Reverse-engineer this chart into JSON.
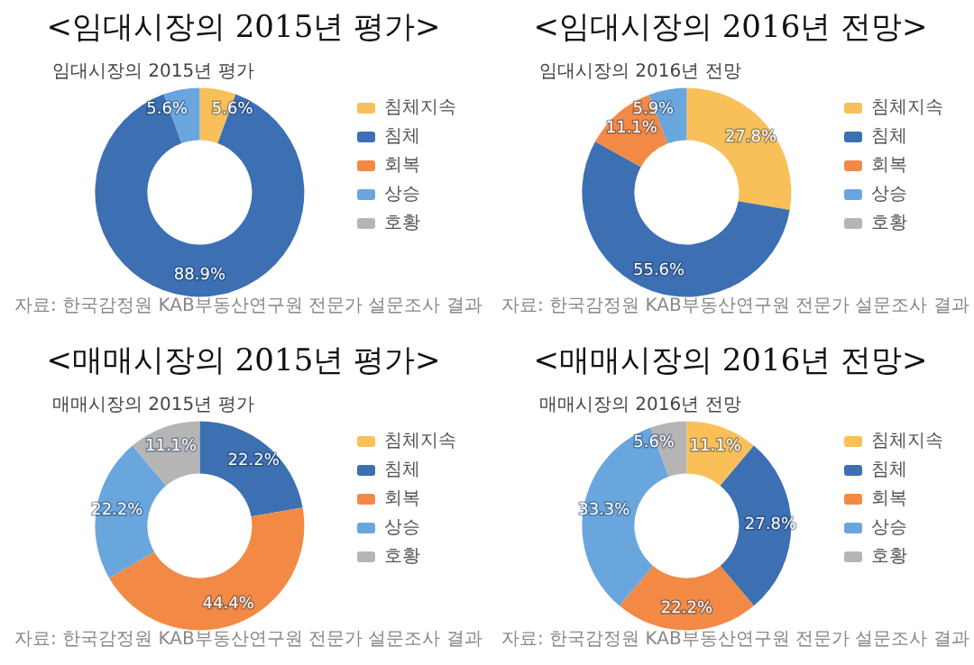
{
  "chart_data": [
    {
      "type": "donut",
      "title": "<임대시장의 2015년 평가>",
      "subtitle": "임대시장의 2015년 평가",
      "categories": [
        "침체지속",
        "침체",
        "회복",
        "상승",
        "호황"
      ],
      "values": [
        5.6,
        88.9,
        0,
        5.6,
        0
      ],
      "value_labels": [
        "5.6%",
        "88.9%",
        null,
        "5.6%",
        null
      ],
      "colors": [
        "#f9c05a",
        "#3d6fb3",
        "#f28a45",
        "#6aa6de",
        "#b5b5b5"
      ],
      "legend": "right",
      "annotations": [
        "자료: 한국감정원 KAB부동산연구원 전문가 설문조사 결과"
      ]
    },
    {
      "type": "donut",
      "title": "<임대시장의 2016년 전망>",
      "subtitle": "임대시장의 2016년 전망",
      "categories": [
        "침체지속",
        "침체",
        "회복",
        "상승",
        "호황"
      ],
      "values": [
        27.8,
        55.6,
        11.1,
        5.9,
        0
      ],
      "value_labels": [
        "27.8%",
        "55.6%",
        "11.1%",
        "5.9%",
        null
      ],
      "colors": [
        "#f9c05a",
        "#3d6fb3",
        "#f28a45",
        "#6aa6de",
        "#b5b5b5"
      ],
      "legend": "right",
      "annotations": [
        "자료: 한국감정원 KAB부동산연구원 전문가 설문조사 결과"
      ]
    },
    {
      "type": "donut",
      "title": "<매매시장의 2015년 평가>",
      "subtitle": "매매시장의 2015년 평가",
      "categories": [
        "침체지속",
        "침체",
        "회복",
        "상승",
        "호황"
      ],
      "values": [
        0,
        22.2,
        44.4,
        22.2,
        11.1
      ],
      "value_labels": [
        null,
        "22.2%",
        "44.4%",
        "22.2%",
        "11.1%"
      ],
      "colors": [
        "#f9c05a",
        "#3d6fb3",
        "#f28a45",
        "#6aa6de",
        "#b5b5b5"
      ],
      "legend": "right",
      "annotations": [
        "자료: 한국감정원 KAB부동산연구원 전문가 설문조사 결과"
      ]
    },
    {
      "type": "donut",
      "title": "<매매시장의 2016년 전망>",
      "subtitle": "매매시장의 2016년 전망",
      "categories": [
        "침체지속",
        "침체",
        "회복",
        "상승",
        "호황"
      ],
      "values": [
        11.1,
        27.8,
        22.2,
        33.3,
        5.6
      ],
      "value_labels": [
        "11.1%",
        "27.8%",
        "22.2%",
        "33.3%",
        "5.6%"
      ],
      "colors": [
        "#f9c05a",
        "#3d6fb3",
        "#f28a45",
        "#6aa6de",
        "#b5b5b5"
      ],
      "legend": "right",
      "annotations": [
        "자료: 한국감정원 KAB부동산연구원 전문가 설문조사 결과"
      ]
    }
  ]
}
